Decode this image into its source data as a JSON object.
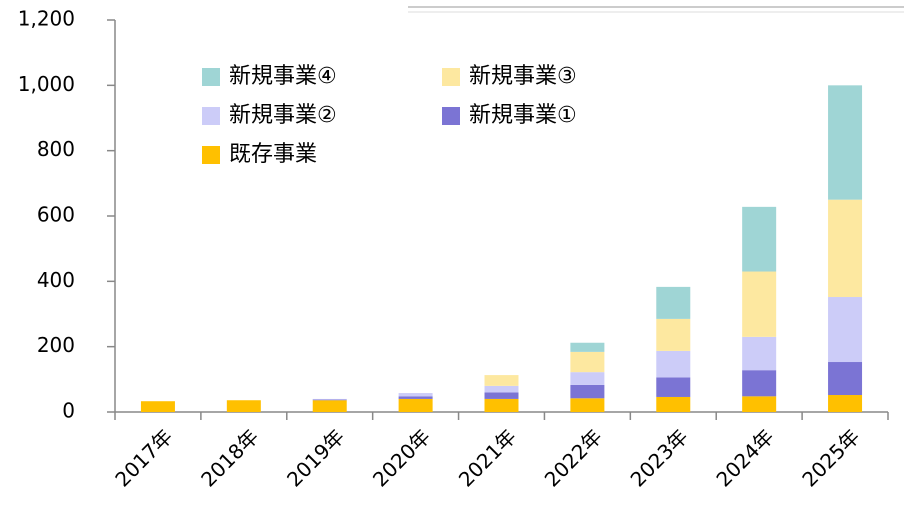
{
  "chart_data": {
    "type": "stacked_bar",
    "categories": [
      "2017年",
      "2018年",
      "2019年",
      "2020年",
      "2021年",
      "2022年",
      "2023年",
      "2024年",
      "2025年"
    ],
    "series": [
      {
        "name": "既存事業",
        "color": "#ffc000",
        "values": [
          33,
          36,
          36,
          40,
          40,
          42,
          46,
          48,
          52
        ]
      },
      {
        "name": "新規事業①",
        "color": "#7b74d4",
        "values": [
          0,
          0,
          2,
          8,
          20,
          41,
          60,
          80,
          101
        ]
      },
      {
        "name": "新規事業②",
        "color": "#ccccf8",
        "values": [
          0,
          0,
          2,
          10,
          20,
          39,
          81,
          102,
          199
        ]
      },
      {
        "name": "新規事業③",
        "color": "#fde8a0",
        "values": [
          0,
          0,
          0,
          0,
          33,
          62,
          98,
          200,
          298
        ]
      },
      {
        "name": "新規事業④",
        "color": "#9fd5d5",
        "values": [
          0,
          0,
          0,
          0,
          0,
          28,
          98,
          198,
          350
        ]
      }
    ],
    "ylim": [
      0,
      1200
    ],
    "yticks": [
      0,
      200,
      400,
      600,
      800,
      {
        "value": 1000,
        "label": "1,000"
      },
      {
        "value": 1200,
        "label": "1,200"
      }
    ]
  }
}
